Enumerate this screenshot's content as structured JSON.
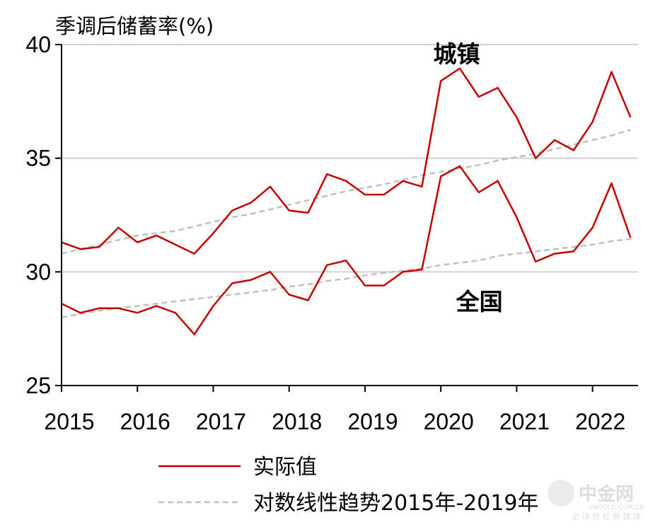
{
  "chart_data": {
    "type": "line",
    "title": "",
    "ylabel": "季调后储蓄率(%)",
    "xlabel": "",
    "ylim": [
      25,
      40
    ],
    "yticks": [
      25,
      30,
      35,
      40
    ],
    "xlim": [
      2015,
      2022.6
    ],
    "xticks": [
      2015,
      2016,
      2017,
      2018,
      2019,
      2020,
      2021,
      2022
    ],
    "xtick_labels": [
      "2015",
      "2016",
      "2017",
      "2018",
      "2019",
      "2020",
      "2021",
      "2022"
    ],
    "grid": "horizontal",
    "legend_position": "bottom",
    "legend": [
      {
        "label": "实际值",
        "color": "#c00000",
        "style": "solid"
      },
      {
        "label": "对数线性趋势2015年-2019年",
        "color": "#c0c0c0",
        "style": "dashed"
      }
    ],
    "annotations": [
      {
        "text": "城镇",
        "x": 2019.9,
        "y": 39.6
      },
      {
        "text": "全国",
        "x": 2020.2,
        "y": 28.7
      }
    ],
    "x": [
      2015.0,
      2015.25,
      2015.5,
      2015.75,
      2016.0,
      2016.25,
      2016.5,
      2016.75,
      2017.0,
      2017.25,
      2017.5,
      2017.75,
      2018.0,
      2018.25,
      2018.5,
      2018.75,
      2019.0,
      2019.25,
      2019.5,
      2019.75,
      2020.0,
      2020.25,
      2020.5,
      2020.75,
      2021.0,
      2021.25,
      2021.5,
      2021.75,
      2022.0,
      2022.25,
      2022.5
    ],
    "series": [
      {
        "name": "城镇",
        "kind": "actual",
        "color": "#c00000",
        "values": [
          31.3,
          31.0,
          31.1,
          31.95,
          31.3,
          31.6,
          31.2,
          30.8,
          31.7,
          32.7,
          33.05,
          33.75,
          32.7,
          32.6,
          34.3,
          34.0,
          33.4,
          33.4,
          34.0,
          33.75,
          38.4,
          38.95,
          37.7,
          38.1,
          36.8,
          35.0,
          35.8,
          35.35,
          36.6,
          38.8,
          36.8
        ]
      },
      {
        "name": "城镇",
        "kind": "trend",
        "color": "#c0c0c0",
        "values": [
          30.8,
          31.0,
          31.2,
          31.4,
          31.6,
          31.7,
          31.8,
          32.0,
          32.2,
          32.4,
          32.55,
          32.75,
          32.95,
          33.15,
          33.35,
          33.55,
          33.7,
          33.85,
          34.05,
          34.25,
          34.4,
          34.55,
          34.7,
          34.9,
          35.05,
          35.2,
          35.4,
          35.6,
          35.8,
          36.0,
          36.25
        ]
      },
      {
        "name": "全国",
        "kind": "actual",
        "color": "#c00000",
        "values": [
          28.6,
          28.2,
          28.4,
          28.4,
          28.2,
          28.5,
          28.2,
          27.25,
          28.5,
          29.5,
          29.65,
          30.0,
          29.0,
          28.75,
          30.3,
          30.5,
          29.4,
          29.4,
          30.0,
          30.1,
          34.2,
          34.65,
          33.5,
          34.0,
          32.4,
          30.45,
          30.8,
          30.9,
          31.95,
          33.9,
          31.5
        ]
      },
      {
        "name": "全国",
        "kind": "trend",
        "color": "#c0c0c0",
        "values": [
          28.0,
          28.15,
          28.3,
          28.4,
          28.5,
          28.6,
          28.7,
          28.8,
          28.9,
          29.0,
          29.1,
          29.2,
          29.35,
          29.45,
          29.6,
          29.7,
          29.85,
          29.95,
          30.05,
          30.15,
          30.3,
          30.4,
          30.5,
          30.7,
          30.8,
          30.9,
          31.0,
          31.1,
          31.2,
          31.35,
          31.45
        ]
      }
    ]
  },
  "watermark": {
    "text": "中金网",
    "sub": "CNGOLD.COM.CN",
    "sub2": "全 球 财 经 新 媒 体"
  }
}
